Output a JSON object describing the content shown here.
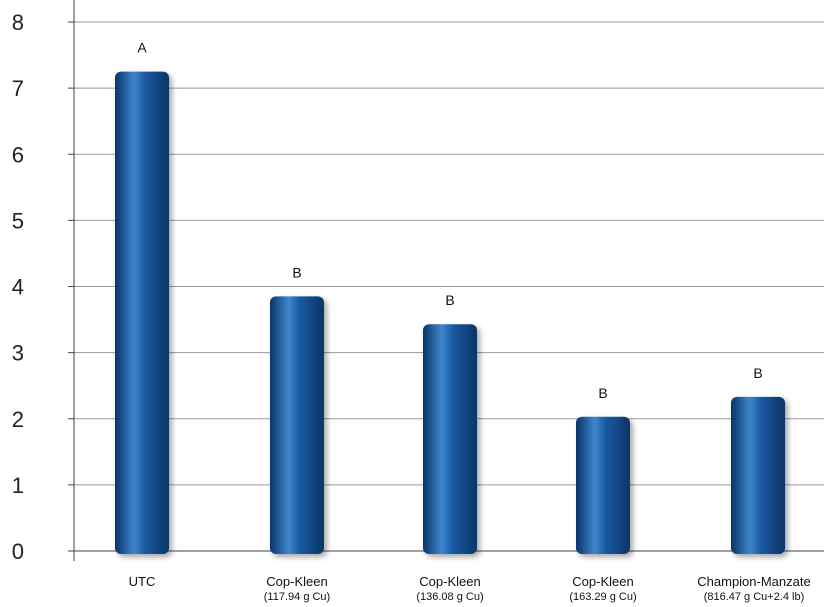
{
  "chart_data": {
    "type": "bar",
    "categories": [
      {
        "label": "UTC",
        "sublabel": ""
      },
      {
        "label": "Cop-Kleen",
        "sublabel": "(117.94 g Cu)"
      },
      {
        "label": "Cop-Kleen",
        "sublabel": "(136.08 g Cu)"
      },
      {
        "label": "Cop-Kleen",
        "sublabel": "(163.29 g Cu)"
      },
      {
        "label": "Champion-Manzate",
        "sublabel": "(816.47 g Cu+2.4 lb)"
      }
    ],
    "values": [
      7.25,
      3.85,
      3.43,
      2.03,
      2.33
    ],
    "significance_letters": [
      "A",
      "B",
      "B",
      "B",
      "B"
    ],
    "yticks": [
      "0",
      "1",
      "2",
      "3",
      "4",
      "5",
      "6",
      "7",
      "8"
    ],
    "ylim": [
      0,
      8
    ],
    "grid": true,
    "colors": {
      "bar_dark": "#0b3566",
      "bar_mid": "#1a5aa3",
      "bar_light": "#3f86cf",
      "grid": "#9a9a9a",
      "axis": "#444444"
    }
  }
}
